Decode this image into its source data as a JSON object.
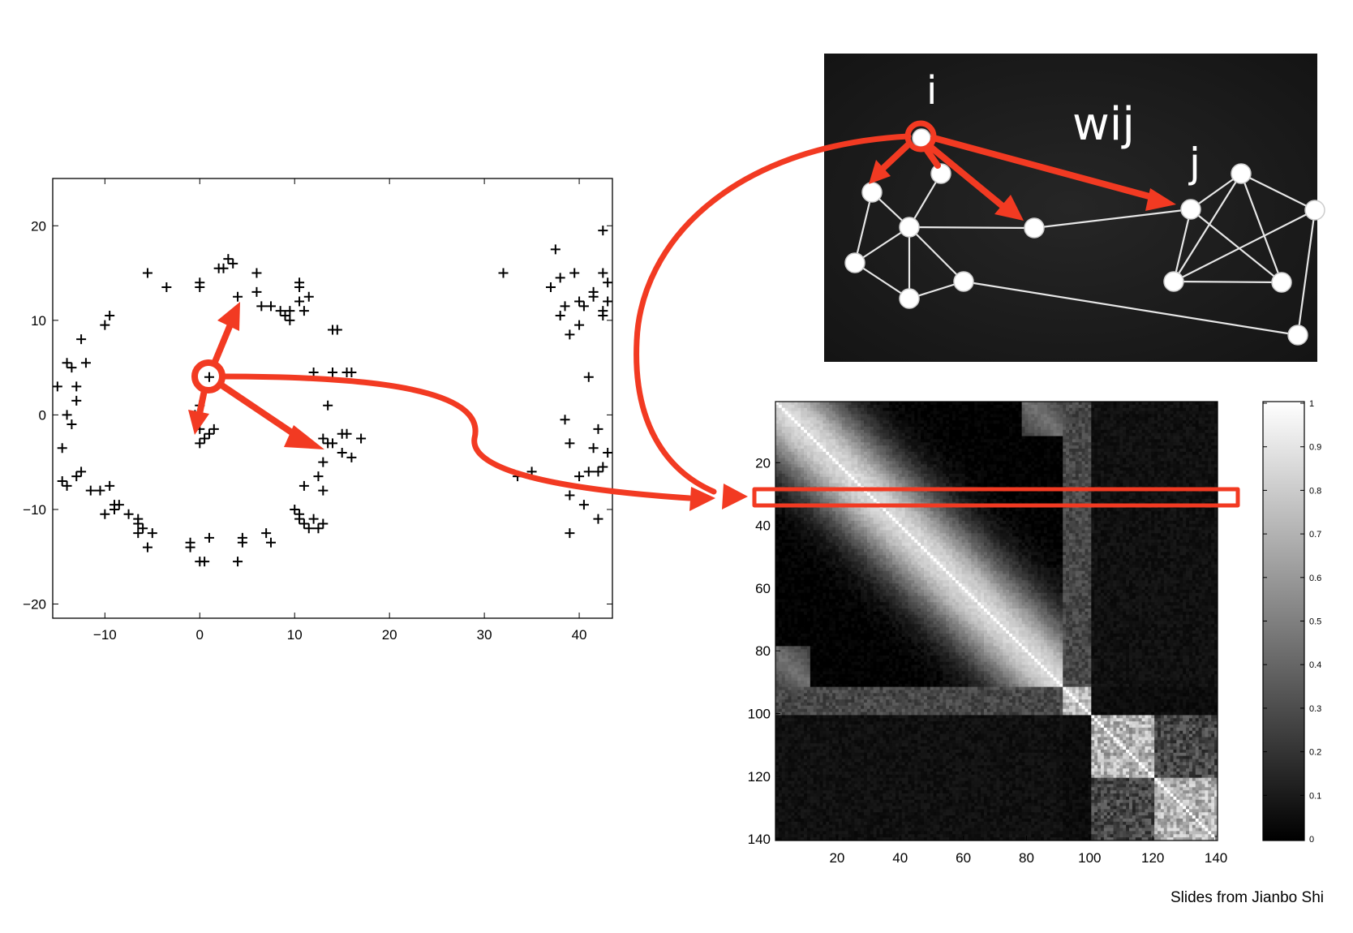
{
  "scatter_plot": {
    "x_ticks": [
      "-10",
      "0",
      "10",
      "20",
      "30",
      "40"
    ],
    "y_ticks": [
      "20",
      "10",
      "0",
      "-10",
      "-20"
    ],
    "xlim": [
      -15.5,
      43.5
    ],
    "ylim": [
      -21.5,
      25
    ]
  },
  "graph_panel": {
    "label_i": "i",
    "label_wij": "wij",
    "label_j": "j"
  },
  "matrix_plot": {
    "x_ticks": [
      "20",
      "40",
      "60",
      "80",
      "100",
      "120",
      "140"
    ],
    "y_ticks": [
      "20",
      "40",
      "60",
      "80",
      "100",
      "120",
      "140"
    ],
    "size": 140,
    "clusters": [
      [
        1,
        91
      ],
      [
        92,
        100
      ],
      [
        101,
        120
      ],
      [
        121,
        140
      ]
    ]
  },
  "colorbar": {
    "ticks": [
      "1",
      "0.9",
      "0.8",
      "0.7",
      "0.6",
      "0.5",
      "0.4",
      "0.3",
      "0.2",
      "0.1",
      "0"
    ]
  },
  "credit": "Slides from Jianbo Shi",
  "colors": {
    "accent": "#f23a22",
    "graph_bg": "#1a1a1a"
  },
  "chart_data": [
    {
      "type": "scatter",
      "marker": "+",
      "xlim": [
        -15.5,
        43.5
      ],
      "ylim": [
        -21.5,
        25
      ],
      "points": [
        [
          -15,
          3
        ],
        [
          -14,
          5.5
        ],
        [
          -14.5,
          -3.5
        ],
        [
          -13.5,
          5
        ],
        [
          -13.5,
          -1
        ],
        [
          -14,
          0
        ],
        [
          -13,
          3
        ],
        [
          -13,
          1.5
        ],
        [
          -12.5,
          -6
        ],
        [
          -13,
          -6.5
        ],
        [
          -12.5,
          8
        ],
        [
          -12,
          5.5
        ],
        [
          -14.5,
          -7
        ],
        [
          -14,
          -7.5
        ],
        [
          -11.5,
          -8
        ],
        [
          -10.5,
          -8
        ],
        [
          -9.5,
          -7.5
        ],
        [
          -10,
          9.5
        ],
        [
          -9.5,
          10.5
        ],
        [
          -9,
          -10
        ],
        [
          -8.5,
          -9.5
        ],
        [
          -7.5,
          -10.5
        ],
        [
          -6.5,
          -11
        ],
        [
          -6,
          -12
        ],
        [
          -6.5,
          -11.5
        ],
        [
          -9,
          -9.5
        ],
        [
          -10,
          -10.5
        ],
        [
          -5.5,
          -14
        ],
        [
          -5.5,
          15
        ],
        [
          -6.5,
          -12.5
        ],
        [
          -5,
          -12.5
        ],
        [
          -3.5,
          13.5
        ],
        [
          -1,
          -13.5
        ],
        [
          -1,
          -14
        ],
        [
          0,
          1
        ],
        [
          -0.5,
          0
        ],
        [
          0,
          -1.5
        ],
        [
          0,
          -3
        ],
        [
          0.5,
          -2.5
        ],
        [
          1,
          -2
        ],
        [
          1.5,
          -1.5
        ],
        [
          0,
          13.5
        ],
        [
          0,
          14
        ],
        [
          0,
          -15.5
        ],
        [
          0.5,
          -15.5
        ],
        [
          1,
          -13
        ],
        [
          1,
          4
        ],
        [
          2,
          15.5
        ],
        [
          3,
          16.5
        ],
        [
          2.5,
          15.5
        ],
        [
          3.5,
          16
        ],
        [
          4,
          12.5
        ],
        [
          4.5,
          -13.5
        ],
        [
          4,
          -15.5
        ],
        [
          4.5,
          -13
        ],
        [
          6,
          15
        ],
        [
          6,
          13
        ],
        [
          6.5,
          11.5
        ],
        [
          7.5,
          11.5
        ],
        [
          7,
          -12.5
        ],
        [
          7.5,
          -13.5
        ],
        [
          8.5,
          11
        ],
        [
          9,
          10.5
        ],
        [
          9.5,
          11
        ],
        [
          9.5,
          10
        ],
        [
          10.5,
          14
        ],
        [
          10.5,
          13.5
        ],
        [
          10.5,
          12
        ],
        [
          11.5,
          12.5
        ],
        [
          11,
          11
        ],
        [
          10,
          -10
        ],
        [
          10.5,
          -10.5
        ],
        [
          10.5,
          -11
        ],
        [
          11,
          -11.5
        ],
        [
          11.5,
          -12
        ],
        [
          12,
          -11
        ],
        [
          12.5,
          -12
        ],
        [
          13,
          -11.5
        ],
        [
          11,
          -7.5
        ],
        [
          13,
          -8
        ],
        [
          12.5,
          -6.5
        ],
        [
          13,
          -5
        ],
        [
          13.5,
          -3
        ],
        [
          13,
          -2.5
        ],
        [
          14,
          -3
        ],
        [
          12,
          4.5
        ],
        [
          13.5,
          1
        ],
        [
          14,
          9
        ],
        [
          14.5,
          9
        ],
        [
          14,
          4.5
        ],
        [
          15.5,
          4.5
        ],
        [
          16,
          4.5
        ],
        [
          15,
          -4
        ],
        [
          15.5,
          -2
        ],
        [
          16,
          -4.5
        ],
        [
          17,
          -2.5
        ],
        [
          15,
          -2
        ],
        [
          32,
          15
        ],
        [
          33.5,
          -6.5
        ],
        [
          35,
          -6
        ],
        [
          37,
          13.5
        ],
        [
          37.5,
          17.5
        ],
        [
          38,
          14.5
        ],
        [
          38,
          10.5
        ],
        [
          38.5,
          11.5
        ],
        [
          38.5,
          -0.5
        ],
        [
          39,
          -3
        ],
        [
          39,
          8.5
        ],
        [
          39.5,
          15
        ],
        [
          39,
          -12.5
        ],
        [
          39,
          -8.5
        ],
        [
          40,
          12
        ],
        [
          40,
          9.5
        ],
        [
          40,
          -6.5
        ],
        [
          40.5,
          11.5
        ],
        [
          40.5,
          -9.5
        ],
        [
          41,
          4
        ],
        [
          41,
          -6
        ],
        [
          41.5,
          13
        ],
        [
          41.5,
          12.5
        ],
        [
          41.5,
          -3.5
        ],
        [
          42,
          -6
        ],
        [
          42,
          -11
        ],
        [
          42,
          -1.5
        ],
        [
          42.5,
          15
        ],
        [
          42.5,
          19.5
        ],
        [
          42.5,
          10.5
        ],
        [
          42.5,
          11
        ],
        [
          43,
          12
        ],
        [
          43,
          14
        ],
        [
          42.5,
          -5.5
        ],
        [
          43,
          -4
        ]
      ]
    },
    {
      "type": "heatmap",
      "size": 140,
      "clusters": [
        [
          1,
          91
        ],
        [
          92,
          100
        ],
        [
          101,
          120
        ],
        [
          121,
          140
        ]
      ],
      "colorbar_range": [
        0,
        1
      ]
    }
  ]
}
